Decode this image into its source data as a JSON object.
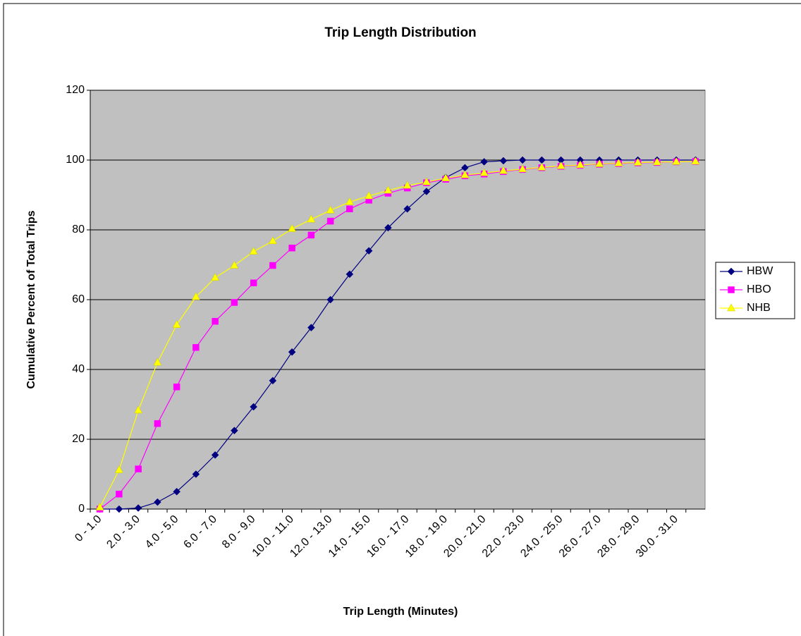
{
  "chart_data": {
    "type": "line",
    "title": "Trip Length Distribution",
    "xlabel": "Trip Length (Minutes)",
    "ylabel": "Cumulative Percent of Total Trips",
    "categories": [
      "0 - 1.0",
      null,
      "2.0 - 3.0",
      null,
      "4.0 - 5.0",
      null,
      "6.0 - 7.0",
      null,
      "8.0 - 9.0",
      null,
      "10.0 - 11.0",
      null,
      "12.0 - 13.0",
      null,
      "14.0 - 15.0",
      null,
      "16.0 - 17.0",
      null,
      "18.0 - 19.0",
      null,
      "20.0 - 21.0",
      null,
      "22.0 - 23.0",
      null,
      "24.0 - 25.0",
      null,
      "26.0 - 27.0",
      null,
      "28.0 - 29.0",
      null,
      "30.0 - 31.0",
      null
    ],
    "series": [
      {
        "name": "HBW",
        "color": "#000080",
        "marker": "diamond",
        "values": [
          0,
          0,
          0.3,
          2,
          5,
          10,
          15.5,
          22.5,
          29.3,
          36.8,
          45,
          52,
          60,
          67.3,
          74,
          80.6,
          86,
          91,
          95,
          97.8,
          99.5,
          99.8,
          100,
          100,
          100,
          100,
          100,
          100,
          100,
          100,
          100,
          100
        ]
      },
      {
        "name": "HBO",
        "color": "#ff00ff",
        "marker": "square",
        "values": [
          0,
          4.3,
          11.5,
          24.5,
          35,
          46.3,
          53.8,
          59.2,
          64.8,
          69.8,
          74.8,
          78.5,
          82.5,
          86,
          88.5,
          90.5,
          92,
          93.5,
          94.5,
          95.5,
          96,
          96.7,
          97.3,
          97.8,
          98.2,
          98.5,
          98.8,
          99,
          99.2,
          99.3,
          99.5,
          99.6
        ]
      },
      {
        "name": "NHB",
        "color": "#ffff00",
        "marker": "triangle",
        "values": [
          0.5,
          11.2,
          28.3,
          42,
          52.8,
          60.8,
          66.3,
          69.8,
          73.8,
          76.8,
          80.3,
          83,
          85.6,
          88,
          89.7,
          91.3,
          92.7,
          93.7,
          94.8,
          95.7,
          96.3,
          96.9,
          97.4,
          97.9,
          98.3,
          98.6,
          98.9,
          99.1,
          99.3,
          99.4,
          99.5,
          99.6
        ]
      }
    ],
    "ylim": [
      0,
      120
    ],
    "yticks": [
      0,
      20,
      40,
      60,
      80,
      100,
      120
    ],
    "grid": true,
    "plot_background": "#c0c0c0",
    "legend": "right"
  }
}
